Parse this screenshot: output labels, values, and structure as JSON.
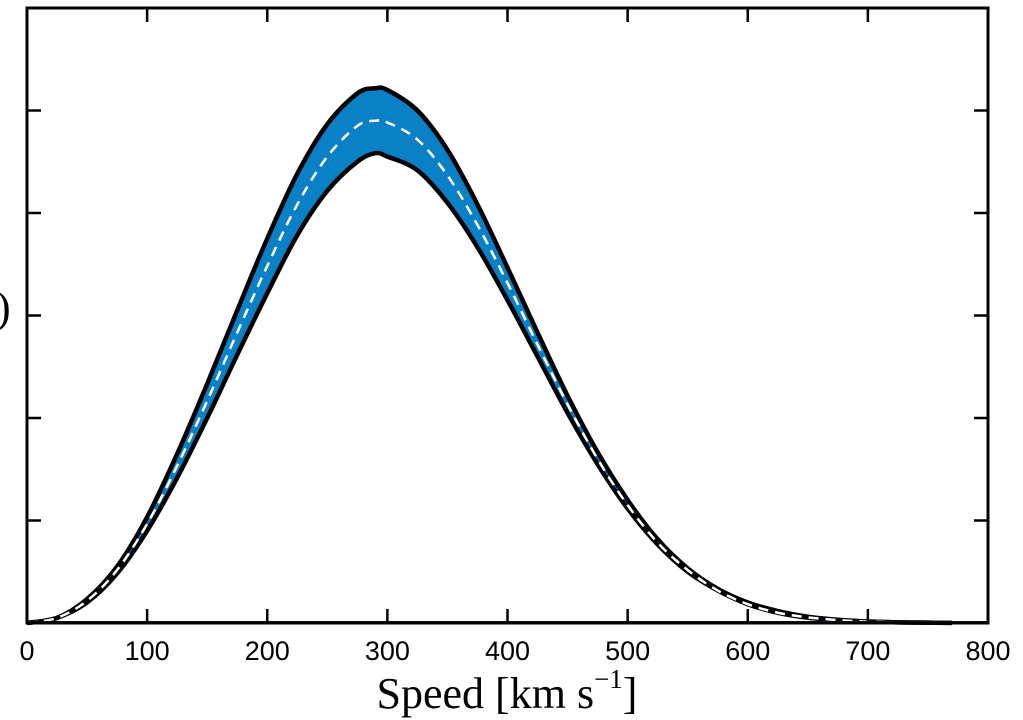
{
  "chart_data": {
    "type": "area",
    "xlabel": "Speed [km s",
    "xlabel_superscript": "−1",
    "xlabel_suffix": "]",
    "ylabel_visible_fragment": ")",
    "xlim": [
      0,
      800
    ],
    "ylim": [
      0,
      0.0036
    ],
    "x_tick_labels": [
      "0",
      "100",
      "200",
      "300",
      "400",
      "500",
      "600",
      "700",
      "800"
    ],
    "x_ticks": [
      0,
      100,
      200,
      300,
      400,
      500,
      600,
      700,
      800
    ],
    "y_ticks": [
      0,
      0.0006,
      0.0012,
      0.0018,
      0.0024,
      0.003,
      0.0036
    ],
    "y_tick_labels_visible": false,
    "grid": false,
    "band_fill_color": "#0a80c6",
    "band_edge_color": "#000000",
    "median_line_color": "#ffffff",
    "median_line_style": "dashed",
    "x": [
      0,
      25,
      50,
      75,
      100,
      125,
      150,
      175,
      200,
      225,
      250,
      275,
      290,
      300,
      325,
      350,
      375,
      400,
      425,
      450,
      475,
      500,
      525,
      550,
      575,
      600,
      625,
      650,
      675,
      700,
      725,
      750,
      770
    ],
    "series": [
      {
        "values": [
          0,
          3e-05,
          0.00013,
          0.00031,
          0.00058,
          0.00092,
          0.0013,
          0.0017,
          0.00209,
          0.00245,
          0.00273,
          0.00291,
          0.00294,
          0.00293,
          0.00283,
          0.00262,
          0.00233,
          0.00199,
          0.00163,
          0.00128,
          0.00096,
          0.00069,
          0.00047,
          0.00031,
          0.00019,
          0.00011,
          6e-05,
          3.3e-05,
          1.7e-05,
          8e-06,
          4e-06,
          2e-06,
          1e-06
        ]
      },
      {
        "values": [
          0,
          3e-05,
          0.00014,
          0.00033,
          0.00062,
          0.00099,
          0.0014,
          0.00183,
          0.00225,
          0.00263,
          0.00292,
          0.0031,
          0.00313,
          0.00312,
          0.003,
          0.00277,
          0.00245,
          0.00208,
          0.0017,
          0.00133,
          0.001,
          0.00072,
          0.00049,
          0.00032,
          0.0002,
          0.00012,
          7e-05,
          3.7e-05,
          1.9e-05,
          9e-06,
          4e-06,
          2e-06,
          1e-06
        ]
      },
      {
        "values": [
          0,
          3e-05,
          0.00012,
          0.00029,
          0.00054,
          0.00085,
          0.0012,
          0.00157,
          0.00193,
          0.00227,
          0.00253,
          0.0027,
          0.00275,
          0.00273,
          0.00265,
          0.00246,
          0.0022,
          0.00189,
          0.00156,
          0.00123,
          0.00093,
          0.00067,
          0.00046,
          0.0003,
          0.00019,
          0.00011,
          6e-05,
          3.1e-05,
          1.6e-05,
          8e-06,
          4e-06,
          2e-06,
          1e-06
        ]
      }
    ]
  }
}
